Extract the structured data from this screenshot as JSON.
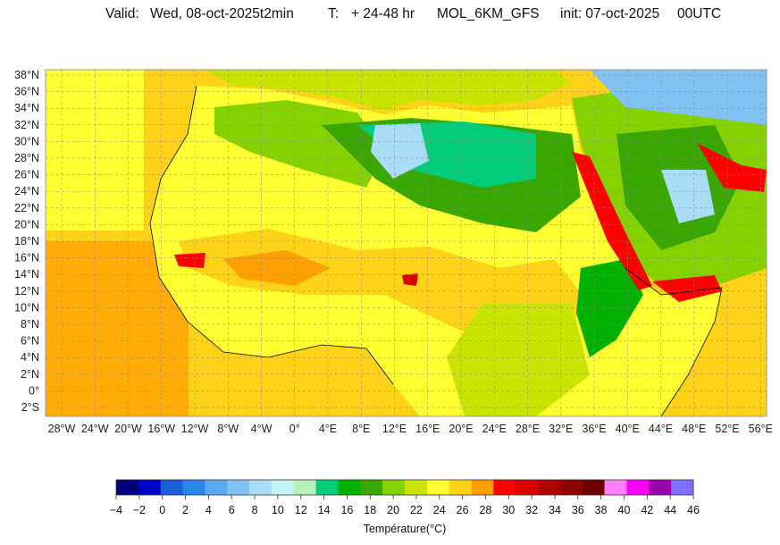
{
  "header": {
    "valid_label": "Valid:",
    "valid_value": "Wed, 08-oct-2025t2min",
    "range_label": "T:",
    "range_value": "+ 24-48 hr",
    "model": "MOL_6KM_GFS",
    "init": "init: 07-oct-2025",
    "run_time": "00UTC"
  },
  "map": {
    "lat_labels": [
      "38°N",
      "36°N",
      "34°N",
      "32°N",
      "30°N",
      "28°N",
      "26°N",
      "24°N",
      "22°N",
      "20°N",
      "18°N",
      "16°N",
      "14°N",
      "12°N",
      "10°N",
      "8°N",
      "6°N",
      "4°N",
      "2°N",
      "0°",
      "2°S"
    ],
    "lon_labels": [
      "28°W",
      "24°W",
      "20°W",
      "16°W",
      "12°W",
      "8°W",
      "4°W",
      "0°",
      "4°E",
      "8°E",
      "12°E",
      "16°E",
      "20°E",
      "24°E",
      "28°E",
      "32°E",
      "36°E",
      "40°E",
      "44°E",
      "48°E",
      "52°E",
      "56°E"
    ]
  },
  "colorbar": {
    "title": "Température(°C)",
    "ticks": [
      "−4",
      "−2",
      "0",
      "2",
      "4",
      "6",
      "8",
      "10",
      "12",
      "14",
      "16",
      "18",
      "20",
      "22",
      "24",
      "26",
      "28",
      "30",
      "32",
      "34",
      "36",
      "38",
      "40",
      "42",
      "44",
      "46"
    ],
    "colors": [
      "#00007f",
      "#0000cc",
      "#1a5fd6",
      "#2a85e8",
      "#58aaf0",
      "#82c2f2",
      "#a9dcf6",
      "#c2f4f6",
      "#b8f0b8",
      "#00cc7a",
      "#00b000",
      "#3aa600",
      "#86d200",
      "#c8e400",
      "#ffff32",
      "#ffd21a",
      "#ffa000",
      "#ff0000",
      "#d80000",
      "#b00000",
      "#8c0000",
      "#6e0000",
      "#ff80ff",
      "#ff00ff",
      "#9900aa",
      "#8070ff"
    ]
  }
}
